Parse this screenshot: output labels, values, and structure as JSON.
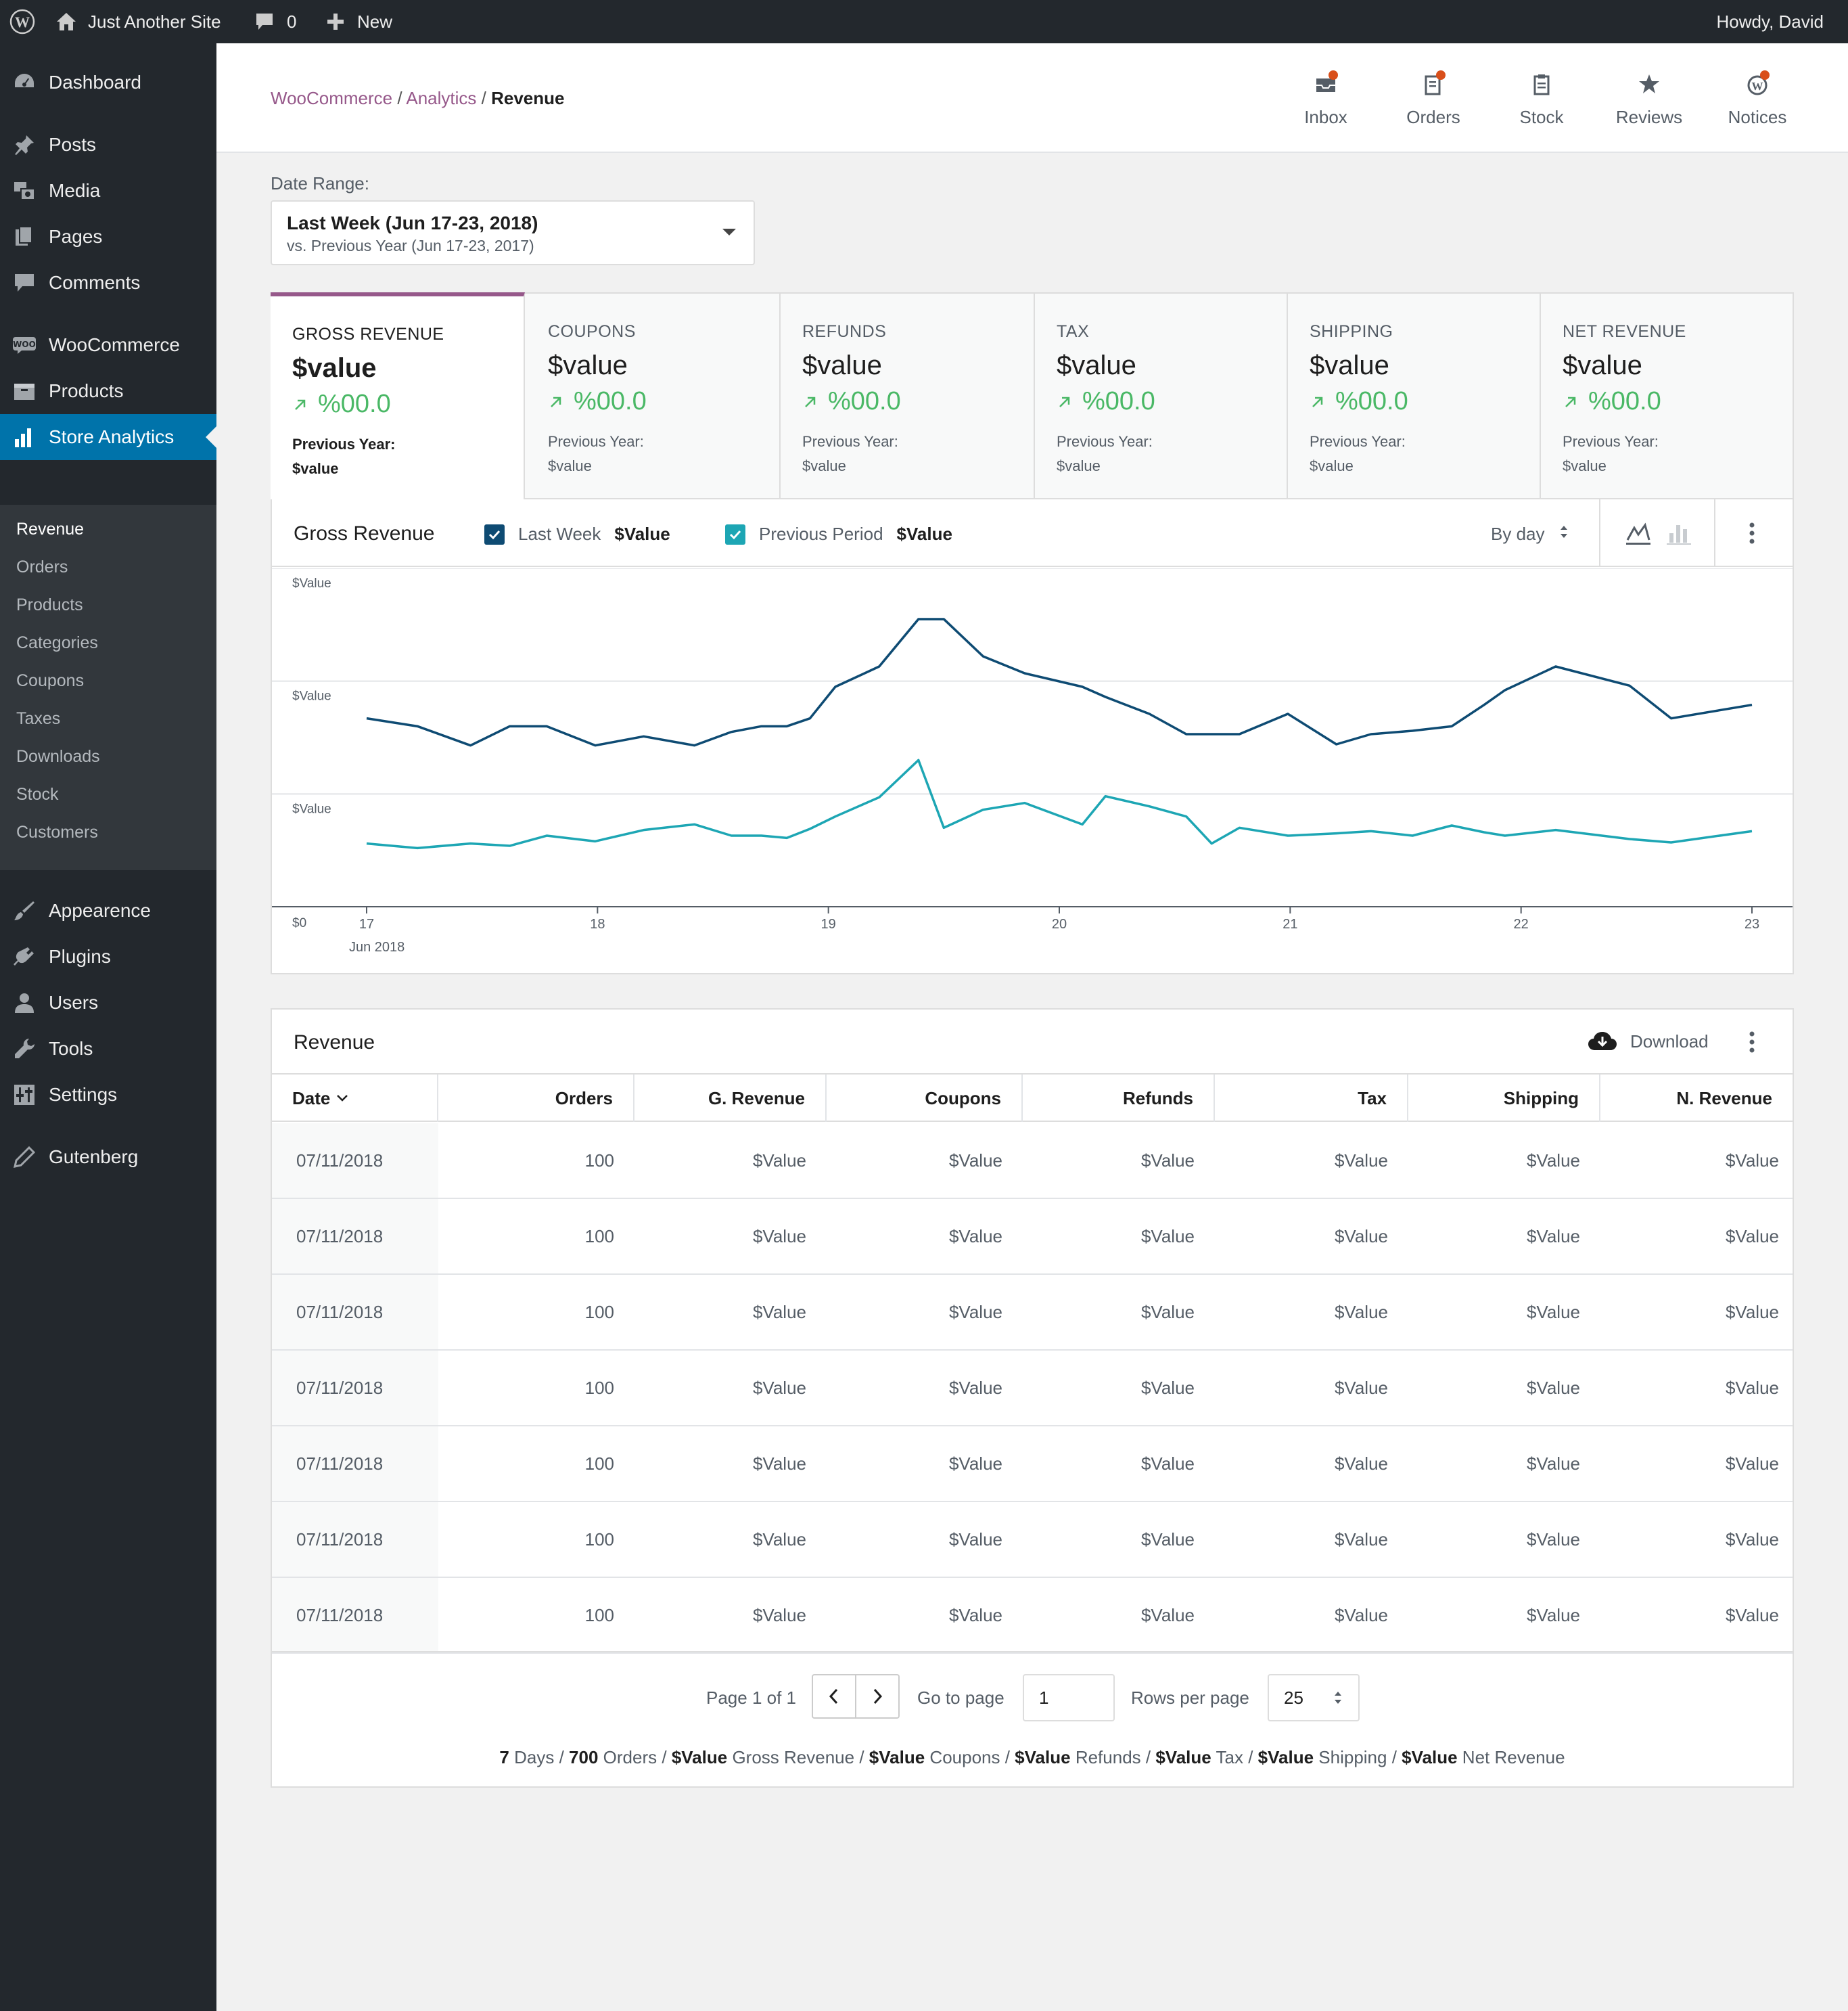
{
  "adminbar": {
    "site_name": "Just Another Site",
    "comments_count": "0",
    "new_label": "New",
    "greeting": "Howdy, David"
  },
  "sidebar": {
    "items": [
      {
        "label": "Dashboard",
        "icon": "dashboard-icon"
      },
      {
        "label": "Posts",
        "icon": "pin-icon"
      },
      {
        "label": "Media",
        "icon": "media-icon"
      },
      {
        "label": "Pages",
        "icon": "pages-icon"
      },
      {
        "label": "Comments",
        "icon": "comments-icon"
      },
      {
        "label": "WooCommerce",
        "icon": "woo-icon"
      },
      {
        "label": "Products",
        "icon": "products-icon"
      },
      {
        "label": "Store Analytics",
        "icon": "bar-chart-icon"
      },
      {
        "label": "Appearence",
        "icon": "brush-icon"
      },
      {
        "label": "Plugins",
        "icon": "plugin-icon"
      },
      {
        "label": "Users",
        "icon": "user-icon"
      },
      {
        "label": "Tools",
        "icon": "wrench-icon"
      },
      {
        "label": "Settings",
        "icon": "settings-icon"
      },
      {
        "label": "Gutenberg",
        "icon": "pencil-icon"
      }
    ],
    "submenu": [
      "Revenue",
      "Orders",
      "Products",
      "Categories",
      "Coupons",
      "Taxes",
      "Downloads",
      "Stock",
      "Customers"
    ]
  },
  "header": {
    "breadcrumb": [
      "WooCommerce",
      "Analytics",
      "Revenue"
    ],
    "icons": [
      {
        "label": "Inbox",
        "icon": "inbox-icon",
        "badge": true
      },
      {
        "label": "Orders",
        "icon": "orders-icon",
        "badge": true
      },
      {
        "label": "Stock",
        "icon": "stock-icon",
        "badge": false
      },
      {
        "label": "Reviews",
        "icon": "star-icon",
        "badge": false
      },
      {
        "label": "Notices",
        "icon": "wordpress-icon",
        "badge": true
      }
    ]
  },
  "date_range": {
    "label": "Date Range:",
    "main": "Last Week (Jun 17-23, 2018)",
    "compare": "vs. Previous Year (Jun 17-23, 2017)"
  },
  "summary": [
    {
      "label": "GROSS REVENUE",
      "value": "$value",
      "delta": "%00.0",
      "prev_label": "Previous Year:",
      "prev_value": "$value"
    },
    {
      "label": "COUPONS",
      "value": "$value",
      "delta": "%00.0",
      "prev_label": "Previous Year:",
      "prev_value": "$value"
    },
    {
      "label": "REFUNDS",
      "value": "$value",
      "delta": "%00.0",
      "prev_label": "Previous Year:",
      "prev_value": "$value"
    },
    {
      "label": "TAX",
      "value": "$value",
      "delta": "%00.0",
      "prev_label": "Previous Year:",
      "prev_value": "$value"
    },
    {
      "label": "SHIPPING",
      "value": "$value",
      "delta": "%00.0",
      "prev_label": "Previous Year:",
      "prev_value": "$value"
    },
    {
      "label": "NET REVENUE",
      "value": "$value",
      "delta": "%00.0",
      "prev_label": "Previous Year:",
      "prev_value": "$value"
    }
  ],
  "chart": {
    "title": "Gross Revenue",
    "legend": [
      {
        "label": "Last Week",
        "value": "$Value"
      },
      {
        "label": "Previous Period",
        "value": "$Value"
      }
    ],
    "interval": "By day"
  },
  "chart_data": {
    "type": "line",
    "x": [
      17.0,
      17.22,
      17.45,
      17.62,
      17.78,
      17.99,
      18.2,
      18.42,
      18.58,
      18.71,
      18.82,
      18.92,
      19.03,
      19.22,
      19.39,
      19.5,
      19.67,
      19.85,
      20.1,
      20.2,
      20.39,
      20.55,
      20.66,
      20.78,
      20.99,
      21.2,
      21.35,
      21.53,
      21.7,
      21.84,
      21.93,
      22.15,
      22.47,
      22.65,
      23.0
    ],
    "y_tick_labels": [
      "$Value",
      "$Value",
      "$Value",
      "$0"
    ],
    "x_tick_labels": [
      "17",
      "18",
      "19",
      "20",
      "21",
      "22",
      "23"
    ],
    "x_sublabel": "Jun 2018",
    "colors": {
      "last_week": "#0e4b73",
      "previous_period": "#1da6b4"
    },
    "series": [
      {
        "name": "Last Week",
        "values": [
          1.67,
          1.6,
          1.43,
          1.6,
          1.6,
          1.43,
          1.51,
          1.43,
          1.55,
          1.6,
          1.6,
          1.67,
          1.95,
          2.13,
          2.55,
          2.55,
          2.22,
          2.07,
          1.95,
          1.86,
          1.71,
          1.53,
          1.53,
          1.53,
          1.71,
          1.44,
          1.53,
          1.56,
          1.6,
          1.79,
          1.92,
          2.13,
          1.96,
          1.67,
          1.79
        ]
      },
      {
        "name": "Previous Period",
        "values": [
          0.56,
          0.52,
          0.56,
          0.54,
          0.63,
          0.58,
          0.68,
          0.73,
          0.63,
          0.63,
          0.61,
          0.69,
          0.8,
          0.97,
          1.3,
          0.7,
          0.86,
          0.92,
          0.73,
          0.98,
          0.89,
          0.8,
          0.56,
          0.7,
          0.63,
          0.65,
          0.67,
          0.63,
          0.72,
          0.66,
          0.63,
          0.68,
          0.6,
          0.57,
          0.67
        ]
      }
    ]
  },
  "table": {
    "title": "Revenue",
    "download_label": "Download",
    "columns": [
      "Date",
      "Orders",
      "G. Revenue",
      "Coupons",
      "Refunds",
      "Tax",
      "Shipping",
      "N. Revenue"
    ],
    "rows": [
      [
        "07/11/2018",
        "100",
        "$Value",
        "$Value",
        "$Value",
        "$Value",
        "$Value",
        "$Value"
      ],
      [
        "07/11/2018",
        "100",
        "$Value",
        "$Value",
        "$Value",
        "$Value",
        "$Value",
        "$Value"
      ],
      [
        "07/11/2018",
        "100",
        "$Value",
        "$Value",
        "$Value",
        "$Value",
        "$Value",
        "$Value"
      ],
      [
        "07/11/2018",
        "100",
        "$Value",
        "$Value",
        "$Value",
        "$Value",
        "$Value",
        "$Value"
      ],
      [
        "07/11/2018",
        "100",
        "$Value",
        "$Value",
        "$Value",
        "$Value",
        "$Value",
        "$Value"
      ],
      [
        "07/11/2018",
        "100",
        "$Value",
        "$Value",
        "$Value",
        "$Value",
        "$Value",
        "$Value"
      ],
      [
        "07/11/2018",
        "100",
        "$Value",
        "$Value",
        "$Value",
        "$Value",
        "$Value",
        "$Value"
      ]
    ],
    "pagination": {
      "page_text": "Page 1 of 1",
      "go_to_label": "Go to page",
      "go_to_value": "1",
      "rows_label": "Rows per page",
      "rows_value": "25"
    },
    "totals": {
      "days": "7",
      "days_label": "Days",
      "orders": "700",
      "orders_label": "Orders",
      "gross": "$Value",
      "gross_label": "Gross Revenue",
      "coupons": "$Value",
      "coupons_label": "Coupons",
      "refunds": "$Value",
      "refunds_label": "Refunds",
      "tax": "$Value",
      "tax_label": "Tax",
      "shipping": "$Value",
      "shipping_label": "Shipping",
      "net": "$Value",
      "net_label": "Net Revenue"
    }
  }
}
